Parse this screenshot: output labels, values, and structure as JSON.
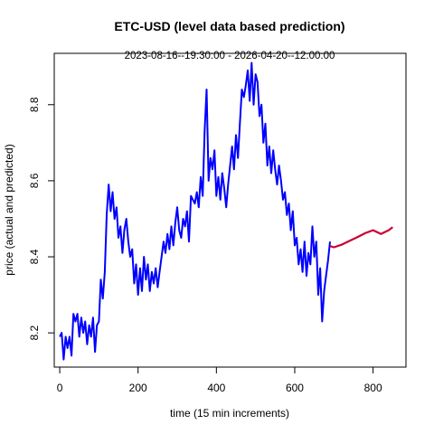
{
  "chart_data": {
    "type": "line",
    "title": "ETC-USD (level data based prediction)",
    "subtitle": "2023-08-16--19:30:00  -  2026-04-20--12:00:00",
    "xlabel": "time (15 min increments)",
    "ylabel": "price (actual and predicted)",
    "xlim": [
      -14,
      884
    ],
    "ylim": [
      8.11,
      8.935
    ],
    "xticks": [
      0,
      200,
      400,
      600,
      800
    ],
    "yticks": [
      8.2,
      8.4,
      8.6,
      8.8
    ],
    "grid": false,
    "legend": "none",
    "series": [
      {
        "color": "#0000ff",
        "x": [
          0,
          5,
          10,
          15,
          20,
          25,
          30,
          35,
          40,
          45,
          50,
          55,
          60,
          65,
          70,
          75,
          80,
          85,
          90,
          95,
          100,
          105,
          110,
          115,
          120,
          125,
          130,
          135,
          140,
          145,
          150,
          155,
          160,
          165,
          170,
          175,
          180,
          185,
          190,
          195,
          200,
          205,
          210,
          215,
          220,
          225,
          230,
          235,
          240,
          245,
          250,
          255,
          260,
          265,
          270,
          275,
          280,
          285,
          290,
          295,
          300,
          305,
          310,
          315,
          320,
          325,
          330,
          335,
          340,
          345,
          350,
          355,
          360,
          365,
          370,
          375,
          380,
          385,
          390,
          395,
          400,
          405,
          410,
          415,
          420,
          425,
          430,
          435,
          440,
          445,
          450,
          455,
          460,
          465,
          470,
          475,
          480,
          485,
          490,
          495,
          500,
          505,
          510,
          515,
          520,
          525,
          530,
          535,
          540,
          545,
          550,
          555,
          560,
          565,
          570,
          575,
          580,
          585,
          590,
          595,
          600,
          605,
          610,
          615,
          620,
          625,
          630,
          635,
          640,
          645,
          650,
          655,
          660,
          665,
          670,
          675,
          680,
          685,
          690
        ],
        "y": [
          8.19,
          8.2,
          8.13,
          8.19,
          8.16,
          8.19,
          8.14,
          8.25,
          8.23,
          8.25,
          8.19,
          8.24,
          8.2,
          8.23,
          8.17,
          8.22,
          8.19,
          8.24,
          8.15,
          8.22,
          8.23,
          8.34,
          8.29,
          8.36,
          8.51,
          8.59,
          8.52,
          8.57,
          8.5,
          8.53,
          8.45,
          8.48,
          8.41,
          8.47,
          8.5,
          8.44,
          8.4,
          8.42,
          8.33,
          8.38,
          8.3,
          8.37,
          8.31,
          8.4,
          8.34,
          8.38,
          8.31,
          8.36,
          8.33,
          8.37,
          8.32,
          8.36,
          8.4,
          8.44,
          8.41,
          8.46,
          8.42,
          8.48,
          8.43,
          8.49,
          8.53,
          8.47,
          8.45,
          8.5,
          8.48,
          8.52,
          8.44,
          8.56,
          8.55,
          8.54,
          8.57,
          8.53,
          8.61,
          8.56,
          8.73,
          8.84,
          8.6,
          8.66,
          8.63,
          8.68,
          8.56,
          8.61,
          8.55,
          8.62,
          8.58,
          8.53,
          8.59,
          8.64,
          8.69,
          8.63,
          8.72,
          8.66,
          8.75,
          8.84,
          8.82,
          8.85,
          8.89,
          8.81,
          8.91,
          8.8,
          8.88,
          8.86,
          8.77,
          8.8,
          8.7,
          8.75,
          8.64,
          8.69,
          8.62,
          8.68,
          8.63,
          8.59,
          8.64,
          8.6,
          8.55,
          8.57,
          8.51,
          8.54,
          8.47,
          8.52,
          8.43,
          8.45,
          8.38,
          8.42,
          8.36,
          8.44,
          8.35,
          8.41,
          8.38,
          8.48,
          8.4,
          8.44,
          8.3,
          8.37,
          8.23,
          8.31,
          8.35,
          8.39,
          8.44
        ]
      },
      {
        "color": "#cc0033",
        "x": [
          690,
          700,
          720,
          740,
          760,
          780,
          800,
          820,
          840,
          850
        ],
        "y": [
          8.428,
          8.425,
          8.432,
          8.442,
          8.452,
          8.462,
          8.47,
          8.46,
          8.47,
          8.478
        ]
      }
    ]
  }
}
